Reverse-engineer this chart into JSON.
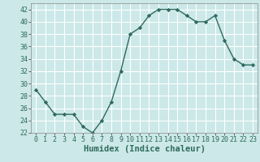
{
  "x": [
    0,
    1,
    2,
    3,
    4,
    5,
    6,
    7,
    8,
    9,
    10,
    11,
    12,
    13,
    14,
    15,
    16,
    17,
    18,
    19,
    20,
    21,
    22,
    23
  ],
  "y": [
    29,
    27,
    25,
    25,
    25,
    23,
    22,
    24,
    27,
    32,
    38,
    39,
    41,
    42,
    42,
    42,
    41,
    40,
    40,
    41,
    37,
    34,
    33,
    33
  ],
  "xlabel": "Humidex (Indice chaleur)",
  "ylim": [
    22,
    43
  ],
  "xlim": [
    -0.5,
    23.5
  ],
  "yticks": [
    22,
    24,
    26,
    28,
    30,
    32,
    34,
    36,
    38,
    40,
    42
  ],
  "xticks": [
    0,
    1,
    2,
    3,
    4,
    5,
    6,
    7,
    8,
    9,
    10,
    11,
    12,
    13,
    14,
    15,
    16,
    17,
    18,
    19,
    20,
    21,
    22,
    23
  ],
  "line_color": "#2e6b5e",
  "marker": "D",
  "marker_size": 2.2,
  "bg_color": "#cce8e8",
  "grid_color": "#ffffff",
  "xlabel_fontsize": 7.5,
  "tick_fontsize": 6.0,
  "linewidth": 1.0
}
